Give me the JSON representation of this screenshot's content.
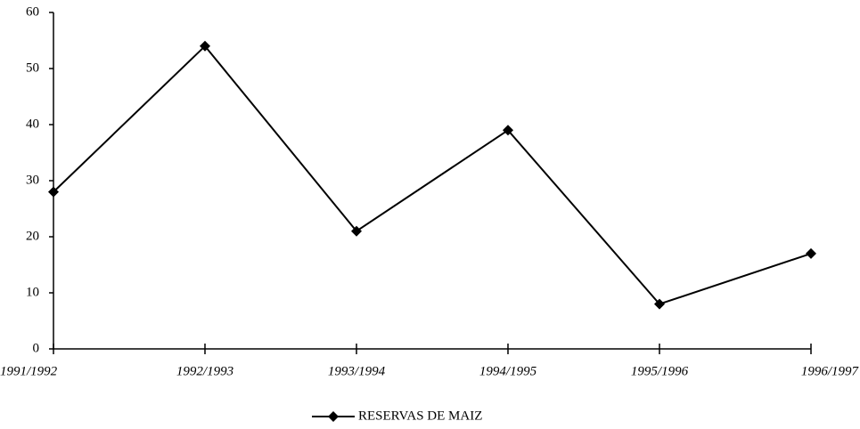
{
  "chart_data": {
    "type": "line",
    "categories": [
      "1991/1992",
      "1992/1993",
      "1993/1994",
      "1994/1995",
      "1995/1996",
      "1996/1997"
    ],
    "series": [
      {
        "name": "RESERVAS DE MAIZ",
        "color": "#000000",
        "values": [
          28,
          54,
          21,
          39,
          8,
          17
        ]
      }
    ],
    "ylim": [
      0,
      60
    ],
    "yticks": [
      0,
      10,
      20,
      30,
      40,
      50,
      60
    ],
    "grid": false,
    "legend": "bottom"
  }
}
